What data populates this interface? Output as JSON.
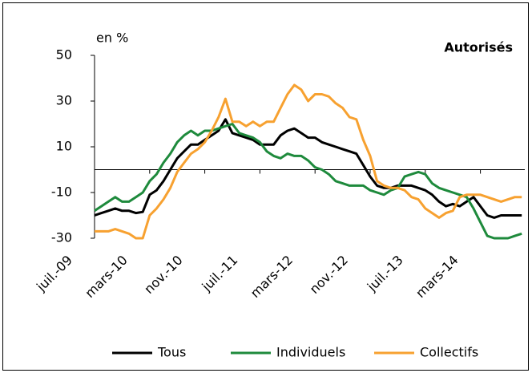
{
  "chart_data": {
    "type": "line",
    "y_label": "en %",
    "annotation": "Autorisés",
    "categories": [
      "juil.-09",
      null,
      null,
      null,
      null,
      null,
      null,
      null,
      "mars-10",
      null,
      null,
      null,
      null,
      null,
      null,
      null,
      "nov.-10",
      null,
      null,
      null,
      null,
      null,
      null,
      null,
      "juil.-11",
      null,
      null,
      null,
      null,
      null,
      null,
      null,
      "mars-12",
      null,
      null,
      null,
      null,
      null,
      null,
      null,
      "nov.-12",
      null,
      null,
      null,
      null,
      null,
      null,
      null,
      "juil.-13",
      null,
      null,
      null,
      null,
      null,
      null,
      null,
      "mars-14",
      null,
      null,
      null,
      null,
      null,
      null
    ],
    "series": [
      {
        "name": "Tous",
        "color": "#000000",
        "values": [
          -20,
          -19,
          -18,
          -17,
          -18,
          -18,
          -19,
          -18.5,
          -11,
          -9,
          -5,
          0,
          5,
          8,
          11,
          11,
          13,
          15,
          17,
          22,
          16,
          15,
          14,
          13,
          11,
          11,
          11,
          15,
          17,
          18,
          16,
          14,
          14,
          12,
          11,
          10,
          9,
          8,
          7,
          2,
          -3,
          -7,
          -8,
          -8,
          -7,
          -7,
          -7,
          -8,
          -9,
          -11,
          -14,
          -16,
          -15,
          -16,
          -14,
          -12,
          -16,
          -20,
          -21,
          -20,
          -20,
          -20,
          -20
        ]
      },
      {
        "name": "Individuels",
        "color": "#1e8a3c",
        "values": [
          -18,
          -16,
          -14,
          -12,
          -14,
          -14,
          -12,
          -10,
          -5,
          -2,
          3,
          7,
          12,
          15,
          17,
          15,
          17,
          17,
          18,
          19,
          20,
          16,
          15,
          14,
          12,
          8,
          6,
          5,
          7,
          6,
          6,
          4,
          1,
          0,
          -2,
          -5,
          -6,
          -7,
          -7,
          -7,
          -9,
          -10,
          -11,
          -9,
          -8,
          -3,
          -2,
          -1,
          -2,
          -6,
          -8,
          -9,
          -10,
          -11,
          -12,
          -17,
          -23,
          -29,
          -30,
          -30,
          -30,
          -29,
          -28
        ]
      },
      {
        "name": "Collectifs",
        "color": "#f7a130",
        "values": [
          -27,
          -27,
          -27,
          -26,
          -27,
          -28,
          -30,
          -30,
          -20,
          -17,
          -13,
          -8,
          -1,
          3,
          7,
          9,
          12,
          17,
          23,
          31,
          21,
          21,
          19,
          21,
          19,
          21,
          21,
          27,
          33,
          37,
          35,
          30,
          33,
          33,
          32,
          29,
          27,
          23,
          22,
          13,
          6,
          -5,
          -7,
          -8,
          -8,
          -9,
          -12,
          -13,
          -17,
          -19,
          -21,
          -19,
          -18,
          -12,
          -11,
          -11,
          -11,
          -12,
          -13,
          -14,
          -13,
          -12,
          -12
        ]
      }
    ],
    "ylim": [
      -30,
      50
    ],
    "yticks": [
      -30,
      -10,
      10,
      30,
      50
    ],
    "legend": "bottom"
  }
}
